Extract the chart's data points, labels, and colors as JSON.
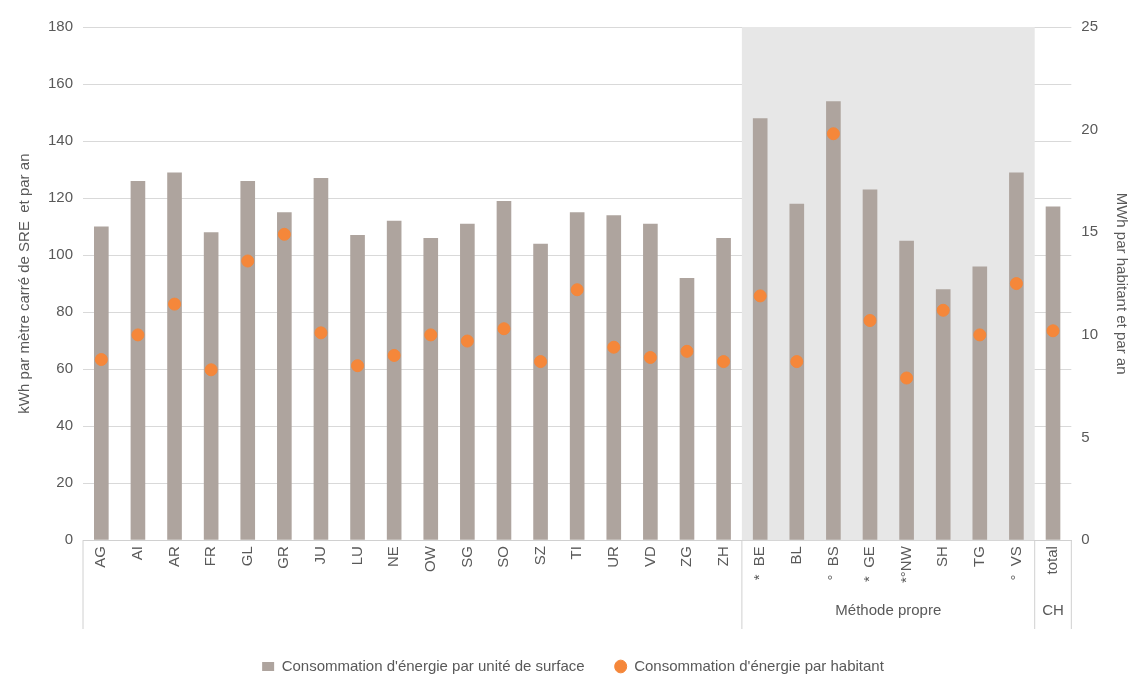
{
  "chart_data": {
    "type": "bar",
    "categories": [
      "AG",
      "AI",
      "AR",
      "FR",
      "GL",
      "GR",
      "JU",
      "LU",
      "NE",
      "OW",
      "SG",
      "SO",
      "SZ",
      "TI",
      "UR",
      "VD",
      "ZG",
      "ZH",
      "*  BE",
      "BL",
      "°  BS",
      "*  GE",
      "*°NW",
      "SH",
      "TG",
      "°  VS",
      "total"
    ],
    "series": [
      {
        "name": "Consommation d'énergie par unité de surface",
        "color": "#aea49e",
        "values": [
          110,
          126,
          129,
          108,
          126,
          115,
          127,
          107,
          112,
          106,
          111,
          119,
          104,
          115,
          114,
          111,
          92,
          106,
          148,
          118,
          154,
          123,
          105,
          88,
          96,
          129,
          117
        ]
      },
      {
        "name": "Consommation d'énergie par habitant",
        "type": "scatter",
        "axis": "y2",
        "color": "#f5873a",
        "marker": "circle",
        "values": [
          8.8,
          10.0,
          11.5,
          8.3,
          13.6,
          14.9,
          10.1,
          8.5,
          9.0,
          10.0,
          9.7,
          10.3,
          8.7,
          12.2,
          9.4,
          8.9,
          9.2,
          8.7,
          11.9,
          8.7,
          19.8,
          10.7,
          7.9,
          11.2,
          10.0,
          12.5,
          10.2
        ]
      }
    ],
    "ylabel": "kWh par mètre carré de SRE  et par an",
    "y2label": "MWh par habitant et par an",
    "ylim": [
      0,
      180
    ],
    "yticks": [
      0,
      20,
      40,
      60,
      80,
      100,
      120,
      140,
      160,
      180
    ],
    "y2lim": [
      0,
      25
    ],
    "y2ticks": [
      0,
      5,
      10,
      15,
      20,
      25
    ],
    "bands": [
      {
        "axis": "x",
        "from": "*  BE",
        "to": "°  VS",
        "color": "#e7e7e7"
      }
    ],
    "annotations": [
      "Méthode propre",
      "CH"
    ],
    "grid": "y",
    "legend": "bottom"
  }
}
